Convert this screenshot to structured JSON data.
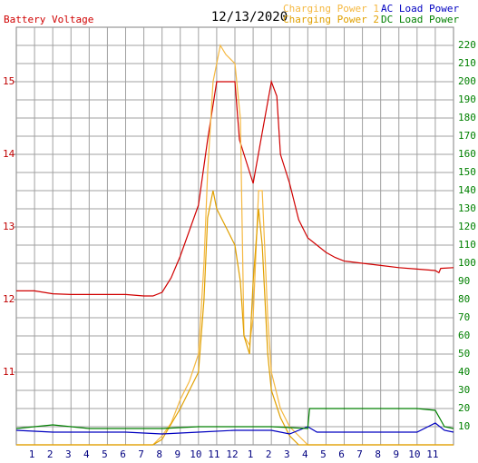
{
  "chart_data": {
    "type": "line",
    "title": "12/13/2020",
    "xlim": [
      0,
      24
    ],
    "xticks": [
      1,
      2,
      3,
      4,
      5,
      6,
      7,
      8,
      9,
      10,
      11,
      12,
      {
        "value": 13,
        "label": "1"
      },
      {
        "value": 14,
        "label": "2"
      },
      {
        "value": 15,
        "label": "3"
      },
      {
        "value": 16,
        "label": "4"
      },
      {
        "value": 17,
        "label": "5"
      },
      {
        "value": 18,
        "label": "6"
      },
      {
        "value": 19,
        "label": "7"
      },
      {
        "value": 20,
        "label": "8"
      },
      {
        "value": 21,
        "label": "9"
      },
      {
        "value": 22,
        "label": "10"
      },
      {
        "value": 23,
        "label": "11"
      }
    ],
    "ylim": [
      10,
      15.75
    ],
    "yticks": [
      11,
      12,
      13,
      14,
      15
    ],
    "y2lim": [
      0,
      230
    ],
    "y2ticks": [
      10,
      20,
      30,
      40,
      50,
      60,
      70,
      80,
      90,
      100,
      110,
      120,
      130,
      140,
      150,
      160,
      170,
      180,
      190,
      200,
      210,
      220
    ],
    "grid": true,
    "series": [
      {
        "name": "Battery Voltage",
        "color": "#d00000",
        "x": [
          0,
          1,
          2,
          3,
          4,
          5,
          6,
          7,
          7.5,
          8,
          8.5,
          9,
          9.5,
          10,
          10.5,
          11,
          11.5,
          12,
          12.25,
          12.5,
          13,
          13.5,
          14,
          14.3,
          14.5,
          15,
          15.5,
          16,
          16.5,
          17,
          17.5,
          18,
          19,
          20,
          21,
          22,
          23,
          23.2,
          23.3,
          24
        ],
        "values": [
          12.12,
          12.12,
          12.08,
          12.07,
          12.07,
          12.07,
          12.07,
          12.05,
          12.05,
          12.1,
          12.3,
          12.6,
          12.95,
          13.3,
          14.2,
          15.0,
          15.0,
          15.0,
          14.2,
          14.0,
          13.6,
          14.3,
          15.0,
          14.8,
          14.0,
          13.6,
          13.1,
          12.85,
          12.75,
          12.65,
          12.58,
          12.53,
          12.5,
          12.47,
          12.44,
          12.42,
          12.4,
          12.37,
          12.43,
          12.44
        ]
      },
      {
        "name": "Charging Power 1",
        "color": "#f5b840",
        "axis": "y2",
        "x": [
          0,
          7.5,
          8,
          8.5,
          9,
          9.5,
          10,
          10.3,
          10.5,
          10.8,
          11,
          11.2,
          11.5,
          12,
          12.3,
          12.5,
          12.8,
          13,
          13.3,
          13.5,
          13.8,
          14,
          14.5,
          15,
          15.5,
          16,
          24
        ],
        "values": [
          0,
          0,
          5,
          12,
          25,
          35,
          50,
          100,
          150,
          200,
          210,
          220,
          215,
          210,
          180,
          60,
          55,
          70,
          140,
          140,
          70,
          40,
          20,
          10,
          5,
          0,
          0
        ]
      },
      {
        "name": "Charging Power 2",
        "color": "#e0a000",
        "axis": "y2",
        "x": [
          0,
          7.5,
          8,
          9,
          9.5,
          10,
          10.3,
          10.5,
          10.8,
          11,
          11.5,
          12,
          12.3,
          12.5,
          12.8,
          13,
          13.3,
          13.5,
          13.8,
          14,
          14.5,
          15,
          15.5,
          24
        ],
        "values": [
          0,
          0,
          3,
          20,
          30,
          40,
          80,
          125,
          140,
          130,
          120,
          110,
          90,
          60,
          50,
          90,
          130,
          110,
          50,
          30,
          15,
          5,
          0,
          0
        ]
      },
      {
        "name": "AC Load Power",
        "color": "#0000c0",
        "axis": "y2",
        "x": [
          0,
          2,
          4,
          6,
          8,
          10,
          12,
          14,
          15,
          16,
          16.5,
          20,
          22,
          23,
          23.5,
          24
        ],
        "values": [
          8,
          7,
          7,
          7,
          6,
          7,
          8,
          8,
          6,
          10,
          7,
          7,
          7,
          12,
          8,
          7
        ]
      },
      {
        "name": "DC Load Power",
        "color": "#008000",
        "axis": "y2",
        "x": [
          0,
          2,
          4,
          8,
          10,
          14,
          16,
          16.1,
          22,
          23,
          23.5,
          24
        ],
        "values": [
          9,
          11,
          9,
          9,
          10,
          10,
          9,
          20,
          20,
          19,
          10,
          9
        ]
      }
    ]
  }
}
